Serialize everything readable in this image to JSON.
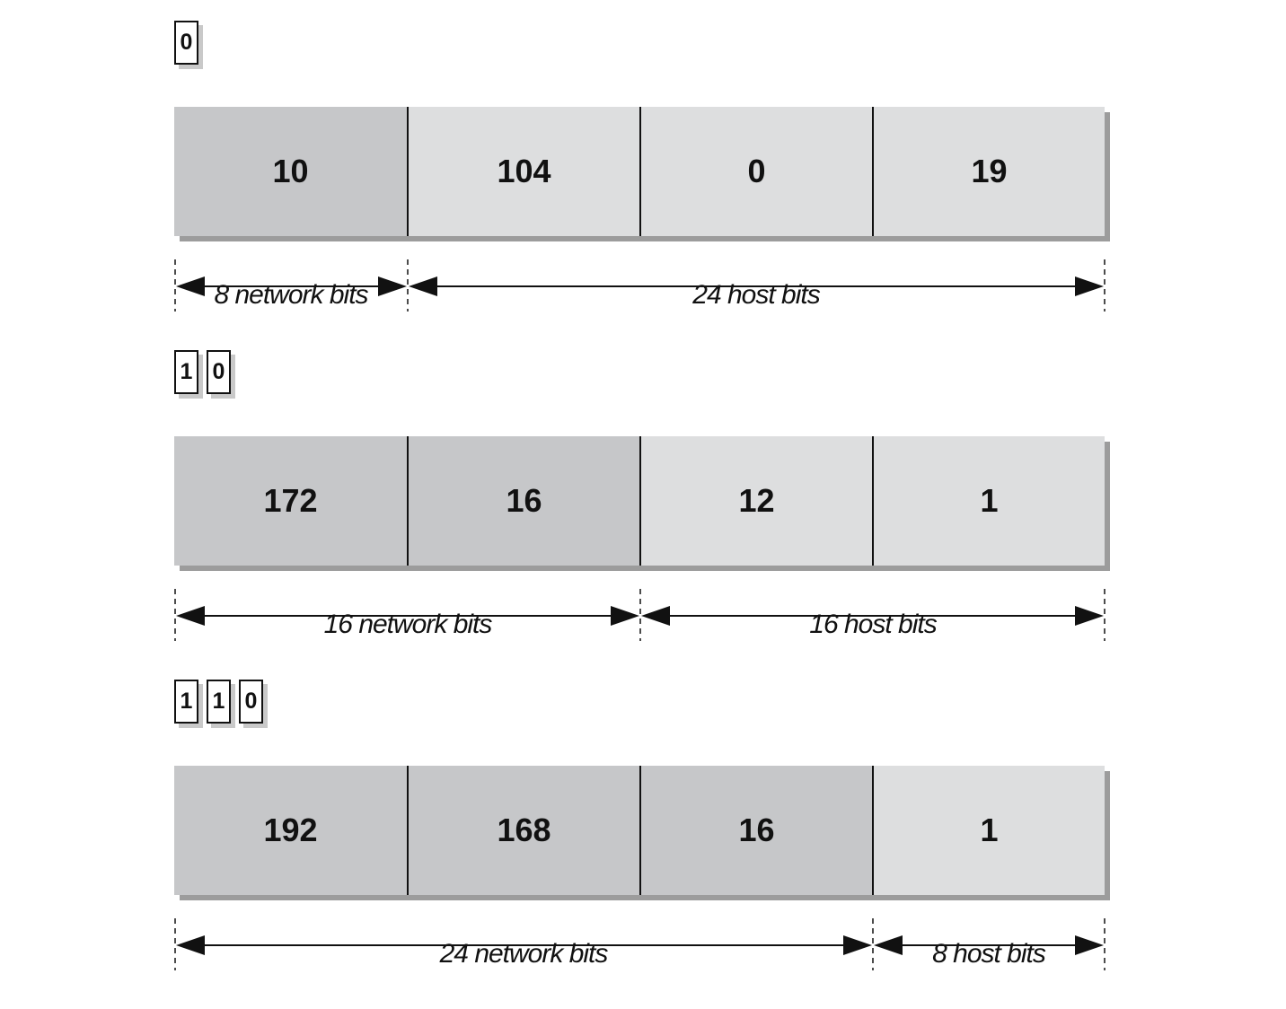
{
  "diagram": {
    "groups": [
      {
        "class_bits": [
          "0"
        ],
        "octets": [
          "10",
          "104",
          "0",
          "19"
        ],
        "network_octets": 1,
        "network_label": "8 network bits",
        "host_label": "24 host bits"
      },
      {
        "class_bits": [
          "1",
          "0"
        ],
        "octets": [
          "172",
          "16",
          "12",
          "1"
        ],
        "network_octets": 2,
        "network_label": "16 network bits",
        "host_label": "16 host bits"
      },
      {
        "class_bits": [
          "1",
          "1",
          "0"
        ],
        "octets": [
          "192",
          "168",
          "16",
          "1"
        ],
        "network_octets": 3,
        "network_label": "24 network bits",
        "host_label": "8 host bits"
      }
    ]
  }
}
